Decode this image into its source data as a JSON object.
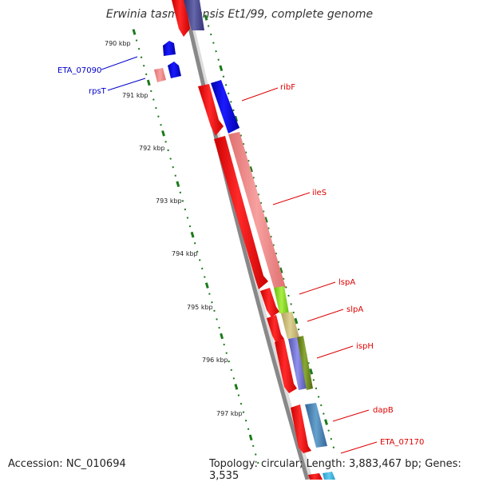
{
  "title": "Erwinia tasmaniensis Et1/99, complete genome",
  "accession": "Accession: NC_010694",
  "topology": "Topology: circular; Length: 3,883,467 bp; Genes: 3,535",
  "ruler": {
    "labels": [
      "790 kbp",
      "791 kbp",
      "792 kbp",
      "793 kbp",
      "794 kbp",
      "795 kbp",
      "796 kbp",
      "797 kbp"
    ],
    "color": "#1a7a1a"
  },
  "genes": [
    {
      "name": "ETA_07090",
      "color": "#0000cc"
    },
    {
      "name": "rpsT",
      "color": "#0000cc"
    },
    {
      "name": "ribF",
      "color": "#dd0000"
    },
    {
      "name": "ileS",
      "color": "#dd0000"
    },
    {
      "name": "lspA",
      "color": "#dd0000"
    },
    {
      "name": "slpA",
      "color": "#dd0000"
    },
    {
      "name": "ispH",
      "color": "#dd0000"
    },
    {
      "name": "dapB",
      "color": "#dd0000"
    },
    {
      "name": "ETA_07170",
      "color": "#dd0000"
    }
  ],
  "colors": {
    "backbone": "#888888",
    "cds": "#ff0000",
    "blue_feature": "#0000ee",
    "pink_feature": "#f08080",
    "lime_feature": "#88dd22",
    "khaki_feature": "#c8b870",
    "slate_feature": "#7777cc",
    "olive_feature": "#668822",
    "steel_feature": "#4a86b4",
    "sky_feature": "#44aadd",
    "navy_feature": "#444488"
  }
}
